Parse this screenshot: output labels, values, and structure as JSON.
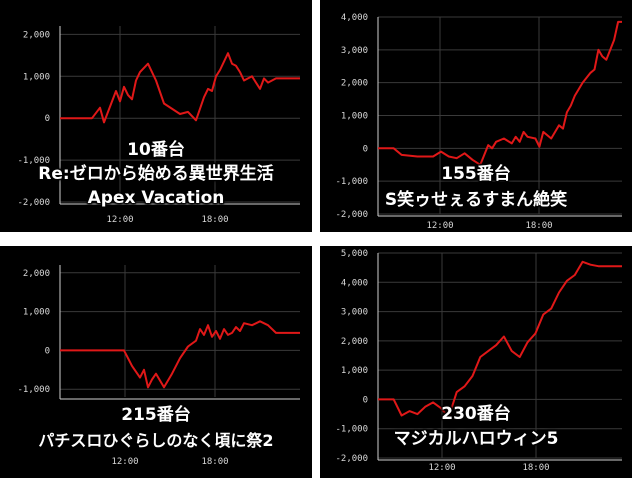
{
  "chart_data": [
    {
      "type": "line",
      "title": "10番台",
      "subtitle": "Re:ゼロから始める異世界生活 Apex Vacation",
      "subtitle_lines": [
        "Re:ゼロから始める異世界生活",
        "Apex Vacation"
      ],
      "x_ticks": [
        "12:00",
        "18:00"
      ],
      "y_ticks": [
        "2,000",
        "1,000",
        "0",
        "-1,000",
        "-2,000"
      ],
      "ylim": [
        -2000,
        2200
      ],
      "grid": true,
      "series": [
        {
          "x": [
            0,
            4,
            5,
            5.5,
            6,
            7,
            7.5,
            8,
            8.5,
            9,
            9.5,
            10,
            11,
            12,
            13,
            15,
            16,
            17,
            18,
            18.5,
            19,
            19.5,
            20,
            21,
            21.5,
            22,
            22.5,
            23,
            24,
            25,
            25.5,
            26,
            27,
            28,
            30
          ],
          "values": [
            0,
            0,
            250,
            -100,
            150,
            650,
            400,
            750,
            550,
            450,
            900,
            1100,
            1300,
            900,
            350,
            100,
            150,
            -50,
            500,
            700,
            650,
            1000,
            1150,
            1550,
            1300,
            1250,
            1100,
            900,
            1000,
            700,
            950,
            850,
            950,
            950,
            950
          ]
        }
      ]
    },
    {
      "type": "line",
      "title": "155番台",
      "subtitle": "S笑ゥせぇるすまん絶笑",
      "subtitle_lines": [
        "S笑ゥせぇるすまん絶笑"
      ],
      "x_ticks": [
        "12:00",
        "18:00"
      ],
      "y_ticks": [
        "4,000",
        "3,000",
        "2,000",
        "1,000",
        "0",
        "-1,000",
        "-2,000"
      ],
      "ylim": [
        -2000,
        4000
      ],
      "grid": true,
      "series": [
        {
          "x": [
            0,
            2,
            3,
            5,
            7,
            8,
            9,
            10,
            11,
            12,
            13,
            14,
            14.5,
            15,
            16,
            17,
            17.5,
            18,
            18.5,
            19,
            20,
            20.5,
            21,
            22,
            23,
            23.5,
            24,
            24.5,
            25,
            26,
            27,
            27.5,
            28,
            28.5,
            29,
            30,
            30.5,
            31
          ],
          "values": [
            0,
            0,
            -200,
            -250,
            -250,
            -100,
            -250,
            -300,
            -150,
            -350,
            -500,
            100,
            0,
            200,
            300,
            150,
            350,
            200,
            500,
            350,
            300,
            50,
            500,
            300,
            700,
            600,
            1100,
            1300,
            1600,
            2000,
            2300,
            2400,
            3000,
            2800,
            2700,
            3300,
            3850,
            3850
          ]
        }
      ]
    },
    {
      "type": "line",
      "title": "215番台",
      "subtitle": "パチスロひぐらしのなく頃に祭2",
      "subtitle_lines": [
        "パチスロひぐらしのなく頃に祭2"
      ],
      "x_ticks": [
        "12:00",
        "18:00"
      ],
      "y_ticks": [
        "2,000",
        "1,000",
        "0",
        "-1,000"
      ],
      "ylim": [
        -1200,
        2200
      ],
      "grid": true,
      "series": [
        {
          "x": [
            0,
            3,
            6,
            8,
            9,
            10,
            10.5,
            11,
            11.5,
            12,
            13,
            14,
            15,
            16,
            17,
            17.5,
            18,
            18.5,
            19,
            19.5,
            20,
            20.5,
            21,
            21.5,
            22,
            22.5,
            23,
            24,
            25,
            26,
            27,
            28,
            30
          ],
          "values": [
            0,
            0,
            0,
            0,
            -400,
            -700,
            -500,
            -950,
            -750,
            -600,
            -950,
            -600,
            -200,
            100,
            250,
            550,
            400,
            650,
            350,
            500,
            300,
            550,
            400,
            450,
            600,
            500,
            700,
            650,
            750,
            650,
            450,
            450,
            450
          ]
        }
      ]
    },
    {
      "type": "line",
      "title": "230番台",
      "subtitle": "マジカルハロウィン5",
      "subtitle_lines": [
        "マジカルハロウィン5"
      ],
      "x_ticks": [
        "12:00",
        "18:00"
      ],
      "y_ticks": [
        "5,000",
        "4,000",
        "3,000",
        "2,000",
        "1,000",
        "0",
        "-1,000",
        "-2,000"
      ],
      "ylim": [
        -2000,
        5000
      ],
      "grid": true,
      "series": [
        {
          "x": [
            0,
            2,
            3,
            4,
            5,
            6,
            7,
            8,
            9,
            10,
            11,
            12,
            13,
            14,
            15,
            16,
            17,
            18,
            19,
            20,
            21,
            22,
            23,
            24,
            25,
            26,
            27,
            28,
            29,
            30,
            31
          ],
          "values": [
            0,
            0,
            -550,
            -400,
            -500,
            -250,
            -100,
            -300,
            -600,
            250,
            450,
            800,
            1450,
            1650,
            1850,
            2150,
            1650,
            1450,
            1950,
            2250,
            2900,
            3100,
            3650,
            4050,
            4250,
            4700,
            4600,
            4550,
            4550,
            4550,
            4550
          ]
        }
      ]
    }
  ]
}
